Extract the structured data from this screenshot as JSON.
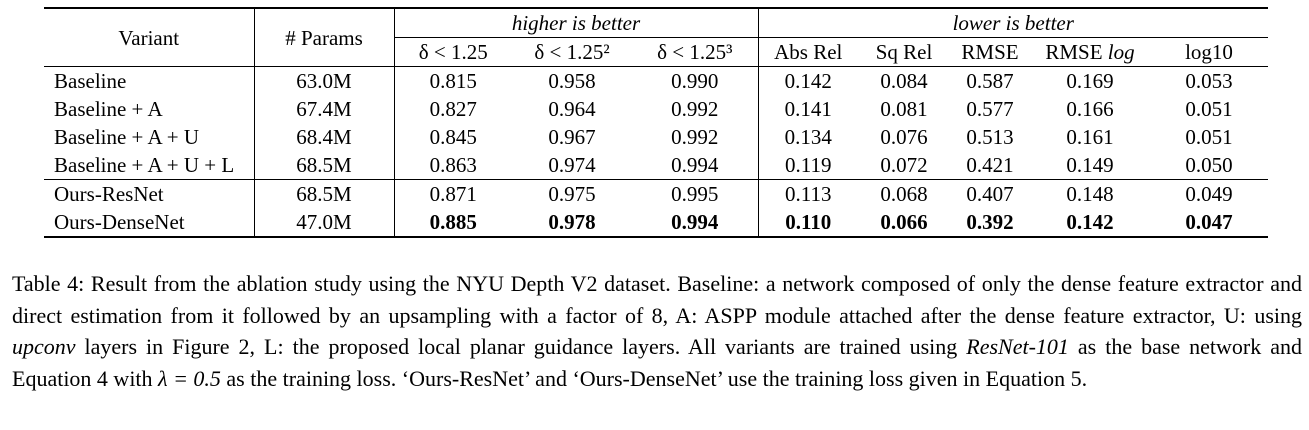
{
  "table": {
    "head": {
      "variant": "Variant",
      "params": "# Params",
      "group_higher": "higher is better",
      "group_lower": "lower is better",
      "metrics": [
        "δ < 1.25",
        "δ < 1.25²",
        "δ < 1.25³",
        "Abs Rel",
        "Sq Rel",
        "RMSE",
        "RMSE",
        "log10"
      ],
      "rmse_log_suffix": "log"
    },
    "rows": [
      {
        "variant": "Baseline",
        "params": "63.0M",
        "values": [
          "0.815",
          "0.958",
          "0.990",
          "0.142",
          "0.084",
          "0.587",
          "0.169",
          "0.053"
        ]
      },
      {
        "variant": "Baseline + A",
        "params": "67.4M",
        "values": [
          "0.827",
          "0.964",
          "0.992",
          "0.141",
          "0.081",
          "0.577",
          "0.166",
          "0.051"
        ]
      },
      {
        "variant": "Baseline + A + U",
        "params": "68.4M",
        "values": [
          "0.845",
          "0.967",
          "0.992",
          "0.134",
          "0.076",
          "0.513",
          "0.161",
          "0.051"
        ]
      },
      {
        "variant": "Baseline + A + U + L",
        "params": "68.5M",
        "values": [
          "0.863",
          "0.974",
          "0.994",
          "0.119",
          "0.072",
          "0.421",
          "0.149",
          "0.050"
        ]
      },
      {
        "variant": "Ours-ResNet",
        "params": "68.5M",
        "values": [
          "0.871",
          "0.975",
          "0.995",
          "0.113",
          "0.068",
          "0.407",
          "0.148",
          "0.049"
        ]
      },
      {
        "variant": "Ours-DenseNet",
        "params": "47.0M",
        "values": [
          "0.885",
          "0.978",
          "0.994",
          "0.110",
          "0.066",
          "0.392",
          "0.142",
          "0.047"
        ]
      }
    ]
  },
  "caption": {
    "part1": "Table 4: Result from the ablation study using the NYU Depth V2 dataset. Baseline: a network composed of only the dense feature extractor and direct estimation from it followed by an upsampling with a factor of 8, A: ASPP module attached after the dense feature extractor, U: using ",
    "upconv": "upconv",
    "part2": " layers in Figure 2, L: the proposed local planar guidance layers. All variants are trained using ",
    "resnet": "ResNet-101",
    "part3": " as the base network and Equation 4 with ",
    "lambda_expr": "λ = 0.5",
    "part4": " as the training loss. ‘Ours-ResNet’ and ‘Ours-DenseNet’ use the training loss given in Equation 5."
  }
}
